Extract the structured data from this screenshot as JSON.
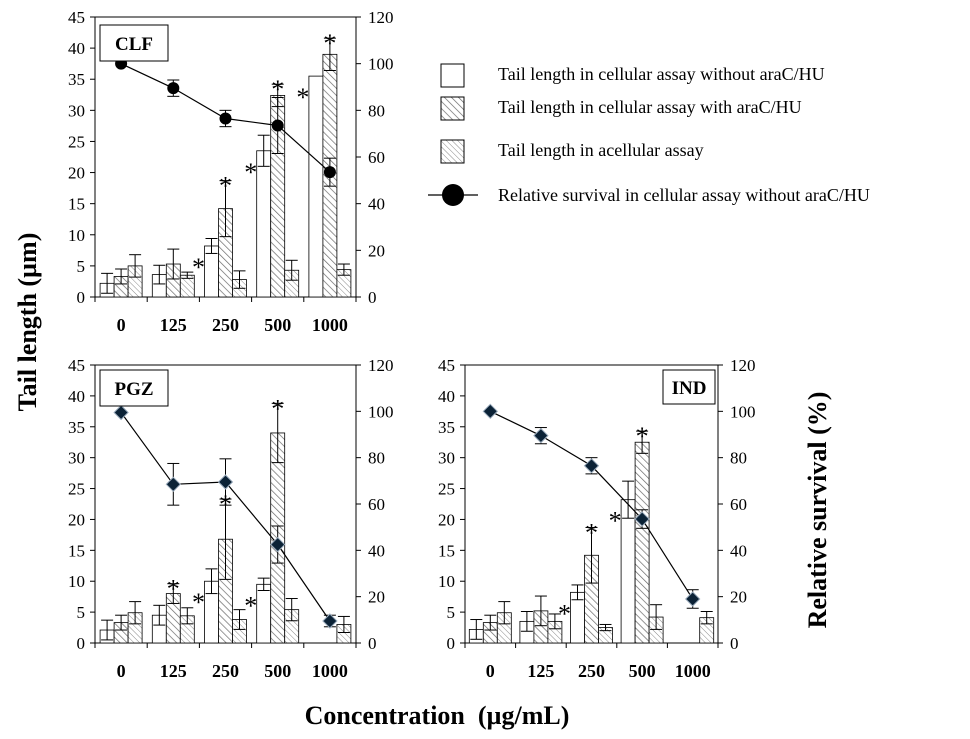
{
  "chart_data": [
    {
      "type": "bar",
      "title": "CLF",
      "categories": [
        "0",
        "125",
        "250",
        "500",
        "1000"
      ],
      "ylim": [
        0,
        45
      ],
      "y2lim": [
        0,
        120
      ],
      "yticks": [
        "0",
        "5",
        "10",
        "15",
        "20",
        "25",
        "30",
        "35",
        "40",
        "45"
      ],
      "y2ticks": [
        "0",
        "20",
        "40",
        "60",
        "80",
        "100",
        "120"
      ],
      "series": [
        {
          "name": "Tail length in cellular assay without araC/HU",
          "values": [
            2.2,
            3.6,
            8.2,
            23.5,
            35.5
          ],
          "errors": [
            1.6,
            1.5,
            1.2,
            2.5,
            0
          ]
        },
        {
          "name": "Tail length in cellular assay with araC/HU",
          "values": [
            3.3,
            5.3,
            14.2,
            32.4,
            39.0
          ],
          "errors": [
            1.2,
            2.4,
            4.5,
            1.8,
            2.6
          ]
        },
        {
          "name": "Tail length in acellular assay",
          "values": [
            5.0,
            3.5,
            2.8,
            4.3,
            4.4
          ],
          "errors": [
            1.8,
            0.5,
            1.4,
            1.6,
            0.9
          ]
        },
        {
          "name": "Relative survival in cellular assay without araC/HU",
          "marker": "circle",
          "values": [
            100,
            89.5,
            76.5,
            73.5,
            53.5
          ],
          "errors": [
            0,
            3.5,
            3.5,
            12,
            6
          ]
        }
      ],
      "significant": [
        [
          false,
          false,
          true,
          true,
          true
        ],
        [
          false,
          false,
          true,
          true,
          true
        ],
        [
          false,
          false,
          false,
          false,
          false
        ]
      ]
    },
    {
      "type": "bar",
      "title": "PGZ",
      "categories": [
        "0",
        "125",
        "250",
        "500",
        "1000"
      ],
      "ylim": [
        0,
        45
      ],
      "y2lim": [
        0,
        120
      ],
      "yticks": [
        "0",
        "5",
        "10",
        "15",
        "20",
        "25",
        "30",
        "35",
        "40",
        "45"
      ],
      "y2ticks": [
        "0",
        "20",
        "40",
        "60",
        "80",
        "100",
        "120"
      ],
      "series": [
        {
          "name": "Tail length in cellular assay without araC/HU",
          "values": [
            2.1,
            4.5,
            10.0,
            9.5,
            0
          ],
          "errors": [
            1.6,
            1.6,
            2.0,
            1.0,
            0
          ]
        },
        {
          "name": "Tail length in cellular assay with araC/HU",
          "values": [
            3.3,
            8.0,
            16.8,
            34.0,
            0
          ],
          "errors": [
            1.2,
            1.6,
            6.5,
            4.8,
            0
          ]
        },
        {
          "name": "Tail length in acellular assay",
          "values": [
            4.9,
            4.4,
            3.8,
            5.4,
            3.0
          ],
          "errors": [
            1.8,
            1.3,
            1.6,
            1.8,
            1.3
          ]
        },
        {
          "name": "Relative survival in cellular assay without araC/HU",
          "marker": "diamond",
          "values": [
            99.5,
            68.5,
            69.5,
            42.5,
            9.5
          ],
          "errors": [
            0,
            9,
            10,
            8,
            2.5
          ]
        }
      ],
      "significant": [
        [
          false,
          false,
          true,
          true,
          false
        ],
        [
          false,
          true,
          true,
          true,
          false
        ],
        [
          false,
          false,
          false,
          false,
          false
        ]
      ]
    },
    {
      "type": "bar",
      "title": "IND",
      "categories": [
        "0",
        "125",
        "250",
        "500",
        "1000"
      ],
      "ylim": [
        0,
        45
      ],
      "y2lim": [
        0,
        120
      ],
      "yticks": [
        "0",
        "5",
        "10",
        "15",
        "20",
        "25",
        "30",
        "35",
        "40",
        "45"
      ],
      "y2ticks": [
        "0",
        "20",
        "40",
        "60",
        "80",
        "100",
        "120"
      ],
      "series": [
        {
          "name": "Tail length in cellular assay without araC/HU",
          "values": [
            2.2,
            3.5,
            8.2,
            23.2,
            0
          ],
          "errors": [
            1.6,
            1.6,
            1.2,
            3.0,
            0
          ]
        },
        {
          "name": "Tail length in cellular assay with araC/HU",
          "values": [
            3.3,
            5.2,
            14.2,
            32.5,
            0
          ],
          "errors": [
            1.2,
            2.4,
            4.5,
            1.8,
            0
          ]
        },
        {
          "name": "Tail length in acellular assay",
          "values": [
            4.9,
            3.5,
            2.5,
            4.2,
            4.1
          ],
          "errors": [
            1.8,
            1.2,
            0.5,
            2.0,
            1.0
          ]
        },
        {
          "name": "Relative survival in cellular assay without araC/HU",
          "marker": "diamond",
          "values": [
            100,
            89.5,
            76.5,
            53.5,
            19
          ],
          "errors": [
            0,
            3.5,
            3.5,
            4,
            4
          ]
        }
      ],
      "significant": [
        [
          false,
          false,
          true,
          true,
          false
        ],
        [
          false,
          false,
          true,
          true,
          false
        ],
        [
          false,
          false,
          false,
          false,
          false
        ]
      ]
    }
  ],
  "labels": {
    "ylabel": "Tail length (µm)",
    "y2label": "Relative survival (%)",
    "xlabel": "Concentration  (µg/mL)",
    "star": "*"
  },
  "legend": [
    {
      "label": "Tail length in cellular assay without araC/HU",
      "kind": "open-bar"
    },
    {
      "label": "Tail length in cellular assay with araC/HU",
      "kind": "hatch-bar"
    },
    {
      "label": "Tail length in acellular assay",
      "kind": "hatch-bar"
    },
    {
      "label": "Relative survival in cellular assay without araC/HU",
      "kind": "line-dot"
    }
  ]
}
